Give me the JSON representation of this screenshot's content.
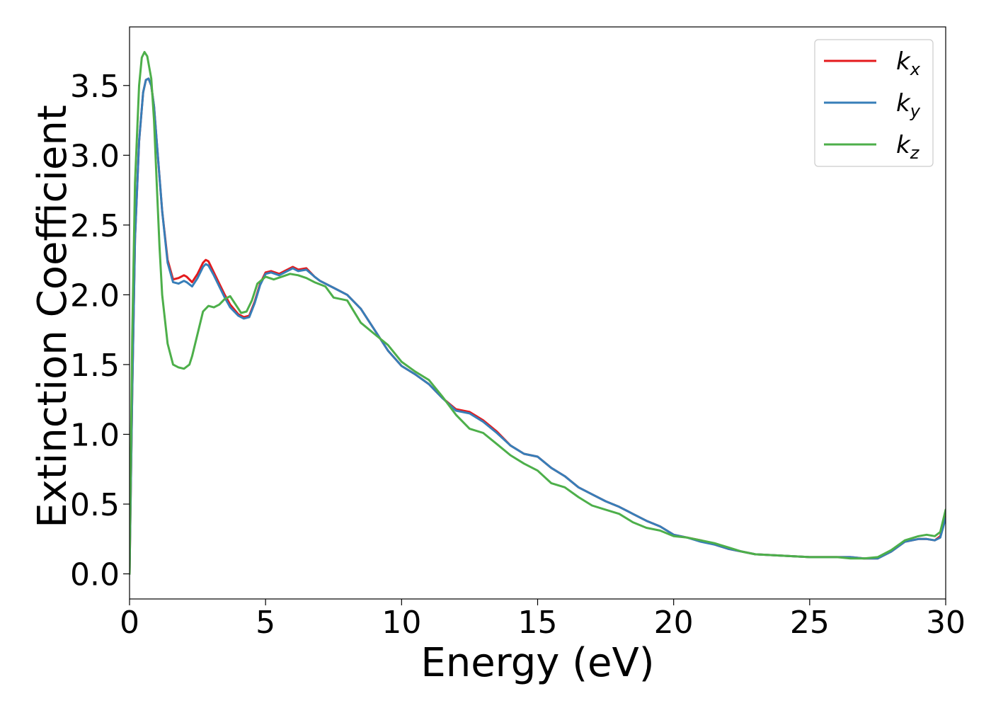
{
  "chart_data": {
    "type": "line",
    "title": "",
    "xlabel": "Energy (eV)",
    "ylabel": "Extinction Coefficient",
    "xlim": [
      0,
      30
    ],
    "ylim": [
      -0.18,
      3.92
    ],
    "xticks": [
      0,
      5,
      10,
      15,
      20,
      25,
      30
    ],
    "xtick_labels": [
      "0",
      "5",
      "10",
      "15",
      "20",
      "25",
      "30"
    ],
    "yticks": [
      0.0,
      0.5,
      1.0,
      1.5,
      2.0,
      2.5,
      3.0,
      3.5
    ],
    "ytick_labels": [
      "0.0",
      "0.5",
      "1.0",
      "1.5",
      "2.0",
      "2.5",
      "3.0",
      "3.5"
    ],
    "grid": false,
    "legend_position": "top-right",
    "series": [
      {
        "name": "k_x",
        "legend_base": "k",
        "legend_sub": "x",
        "color": "#e41a1c",
        "x": [
          0,
          0.1,
          0.2,
          0.35,
          0.5,
          0.6,
          0.7,
          0.8,
          0.9,
          1.0,
          1.2,
          1.4,
          1.6,
          1.8,
          2.0,
          2.1,
          2.3,
          2.5,
          2.7,
          2.8,
          2.9,
          3.1,
          3.3,
          3.5,
          3.7,
          4.0,
          4.2,
          4.4,
          4.6,
          4.8,
          5.0,
          5.2,
          5.5,
          5.7,
          6.0,
          6.2,
          6.5,
          6.8,
          7.0,
          7.5,
          8.0,
          8.5,
          9.0,
          9.5,
          10.0,
          10.5,
          11.0,
          11.5,
          12.0,
          12.5,
          13.0,
          13.5,
          14.0,
          14.5,
          15.0,
          15.5,
          16.0,
          16.5,
          17.0,
          17.5,
          18.0,
          18.5,
          19.0,
          19.5,
          20.0,
          20.5,
          21.0,
          21.5,
          22.0,
          22.5,
          23.0,
          24.0,
          25.0,
          26.0,
          26.5,
          27.0,
          27.5,
          28.0,
          28.5,
          29.0,
          29.3,
          29.6,
          29.8,
          30.0
        ],
        "y": [
          0.0,
          1.3,
          2.4,
          3.1,
          3.45,
          3.54,
          3.55,
          3.5,
          3.35,
          3.1,
          2.6,
          2.25,
          2.11,
          2.12,
          2.14,
          2.13,
          2.09,
          2.15,
          2.23,
          2.25,
          2.24,
          2.16,
          2.08,
          2.0,
          1.93,
          1.86,
          1.84,
          1.85,
          1.95,
          2.08,
          2.16,
          2.17,
          2.15,
          2.17,
          2.2,
          2.18,
          2.19,
          2.13,
          2.1,
          2.05,
          2.0,
          1.9,
          1.75,
          1.6,
          1.49,
          1.43,
          1.36,
          1.26,
          1.18,
          1.16,
          1.1,
          1.02,
          0.92,
          0.86,
          0.84,
          0.76,
          0.7,
          0.62,
          0.57,
          0.52,
          0.48,
          0.43,
          0.38,
          0.34,
          0.28,
          0.26,
          0.24,
          0.21,
          0.18,
          0.16,
          0.14,
          0.13,
          0.12,
          0.12,
          0.12,
          0.11,
          0.11,
          0.16,
          0.23,
          0.25,
          0.25,
          0.24,
          0.27,
          0.41
        ]
      },
      {
        "name": "k_y",
        "legend_base": "k",
        "legend_sub": "y",
        "color": "#377eb8",
        "x": [
          0,
          0.1,
          0.2,
          0.35,
          0.5,
          0.6,
          0.7,
          0.8,
          0.9,
          1.0,
          1.2,
          1.4,
          1.6,
          1.8,
          2.0,
          2.1,
          2.3,
          2.5,
          2.7,
          2.8,
          2.9,
          3.1,
          3.3,
          3.5,
          3.7,
          4.0,
          4.2,
          4.4,
          4.6,
          4.8,
          5.0,
          5.2,
          5.5,
          5.7,
          6.0,
          6.2,
          6.5,
          6.8,
          7.0,
          7.5,
          8.0,
          8.5,
          9.0,
          9.5,
          10.0,
          10.5,
          11.0,
          11.5,
          12.0,
          12.5,
          13.0,
          13.5,
          14.0,
          14.5,
          15.0,
          15.5,
          16.0,
          16.5,
          17.0,
          17.5,
          18.0,
          18.5,
          19.0,
          19.5,
          20.0,
          20.5,
          21.0,
          21.5,
          22.0,
          22.5,
          23.0,
          24.0,
          25.0,
          26.0,
          26.5,
          27.0,
          27.5,
          28.0,
          28.5,
          29.0,
          29.3,
          29.6,
          29.8,
          30.0
        ],
        "y": [
          0.0,
          1.3,
          2.4,
          3.1,
          3.45,
          3.54,
          3.55,
          3.5,
          3.35,
          3.1,
          2.6,
          2.23,
          2.09,
          2.08,
          2.1,
          2.09,
          2.06,
          2.12,
          2.2,
          2.22,
          2.21,
          2.14,
          2.06,
          1.98,
          1.91,
          1.85,
          1.83,
          1.84,
          1.94,
          2.07,
          2.15,
          2.16,
          2.14,
          2.16,
          2.19,
          2.17,
          2.18,
          2.13,
          2.1,
          2.05,
          2.0,
          1.9,
          1.75,
          1.6,
          1.49,
          1.43,
          1.36,
          1.26,
          1.17,
          1.15,
          1.09,
          1.01,
          0.92,
          0.86,
          0.84,
          0.76,
          0.7,
          0.62,
          0.57,
          0.52,
          0.48,
          0.43,
          0.38,
          0.34,
          0.28,
          0.26,
          0.23,
          0.21,
          0.18,
          0.16,
          0.14,
          0.13,
          0.12,
          0.12,
          0.12,
          0.11,
          0.11,
          0.16,
          0.23,
          0.25,
          0.25,
          0.24,
          0.26,
          0.4
        ]
      },
      {
        "name": "k_z",
        "legend_base": "k",
        "legend_sub": "z",
        "color": "#4daf4a",
        "x": [
          0,
          0.1,
          0.2,
          0.35,
          0.45,
          0.55,
          0.65,
          0.8,
          0.9,
          1.0,
          1.1,
          1.2,
          1.4,
          1.6,
          1.8,
          2.0,
          2.2,
          2.3,
          2.5,
          2.7,
          2.9,
          3.1,
          3.3,
          3.5,
          3.7,
          3.9,
          4.1,
          4.3,
          4.5,
          4.7,
          5.0,
          5.3,
          5.6,
          5.9,
          6.2,
          6.5,
          6.8,
          7.2,
          7.5,
          8.0,
          8.5,
          9.0,
          9.5,
          10.0,
          10.5,
          11.0,
          11.5,
          12.0,
          12.5,
          13.0,
          13.5,
          14.0,
          14.5,
          15.0,
          15.5,
          16.0,
          16.5,
          17.0,
          17.5,
          18.0,
          18.5,
          19.0,
          19.5,
          20.0,
          20.5,
          21.0,
          21.5,
          22.0,
          22.5,
          23.0,
          24.0,
          25.0,
          26.0,
          26.5,
          27.0,
          27.5,
          28.0,
          28.5,
          29.0,
          29.3,
          29.6,
          29.8,
          30.0
        ],
        "y": [
          0.0,
          1.7,
          2.8,
          3.5,
          3.7,
          3.74,
          3.71,
          3.55,
          3.25,
          2.8,
          2.35,
          2.0,
          1.65,
          1.5,
          1.48,
          1.47,
          1.5,
          1.56,
          1.72,
          1.88,
          1.92,
          1.91,
          1.93,
          1.97,
          1.99,
          1.93,
          1.87,
          1.88,
          1.96,
          2.08,
          2.13,
          2.11,
          2.13,
          2.15,
          2.14,
          2.12,
          2.09,
          2.06,
          1.98,
          1.96,
          1.8,
          1.72,
          1.64,
          1.52,
          1.45,
          1.39,
          1.27,
          1.14,
          1.04,
          1.01,
          0.93,
          0.85,
          0.79,
          0.74,
          0.65,
          0.62,
          0.55,
          0.49,
          0.46,
          0.43,
          0.37,
          0.33,
          0.31,
          0.27,
          0.26,
          0.24,
          0.22,
          0.19,
          0.16,
          0.14,
          0.13,
          0.12,
          0.12,
          0.11,
          0.11,
          0.12,
          0.17,
          0.24,
          0.27,
          0.28,
          0.27,
          0.3,
          0.46
        ]
      }
    ]
  }
}
